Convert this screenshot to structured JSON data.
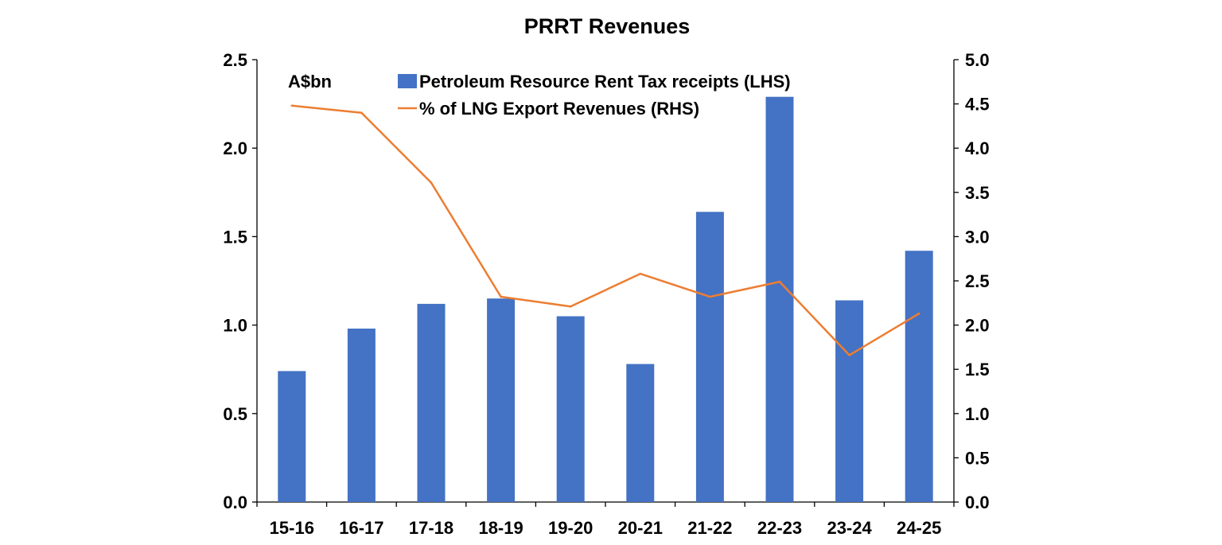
{
  "chart_data": {
    "type": "bar",
    "title": "PRRT Revenues",
    "unit_label": "A$bn",
    "categories": [
      "15-16",
      "16-17",
      "17-18",
      "18-19",
      "19-20",
      "20-21",
      "21-22",
      "22-23",
      "23-24",
      "24-25"
    ],
    "series": [
      {
        "name": "Petroleum Resource Rent Tax receipts (LHS)",
        "type": "bar",
        "axis": "left",
        "color": "#4472C4",
        "values": [
          0.74,
          0.98,
          1.12,
          1.15,
          1.05,
          0.78,
          1.64,
          2.29,
          1.14,
          1.42
        ]
      },
      {
        "name": "% of LNG Export Revenues (RHS)",
        "type": "line",
        "axis": "right",
        "color": "#ED7D31",
        "values": [
          4.48,
          4.4,
          3.61,
          2.32,
          2.21,
          2.58,
          2.32,
          2.49,
          1.66,
          2.13
        ]
      }
    ],
    "left_axis": {
      "min": 0,
      "max": 2.5,
      "ticks": [
        "0.0",
        "0.5",
        "1.0",
        "1.5",
        "2.0",
        "2.5"
      ]
    },
    "right_axis": {
      "min": 0,
      "max": 5,
      "ticks": [
        "0.0",
        "0.5",
        "1.0",
        "1.5",
        "2.0",
        "2.5",
        "3.0",
        "3.5",
        "4.0",
        "4.5",
        "5.0"
      ]
    },
    "grid": false,
    "legend_position": "top-center"
  }
}
